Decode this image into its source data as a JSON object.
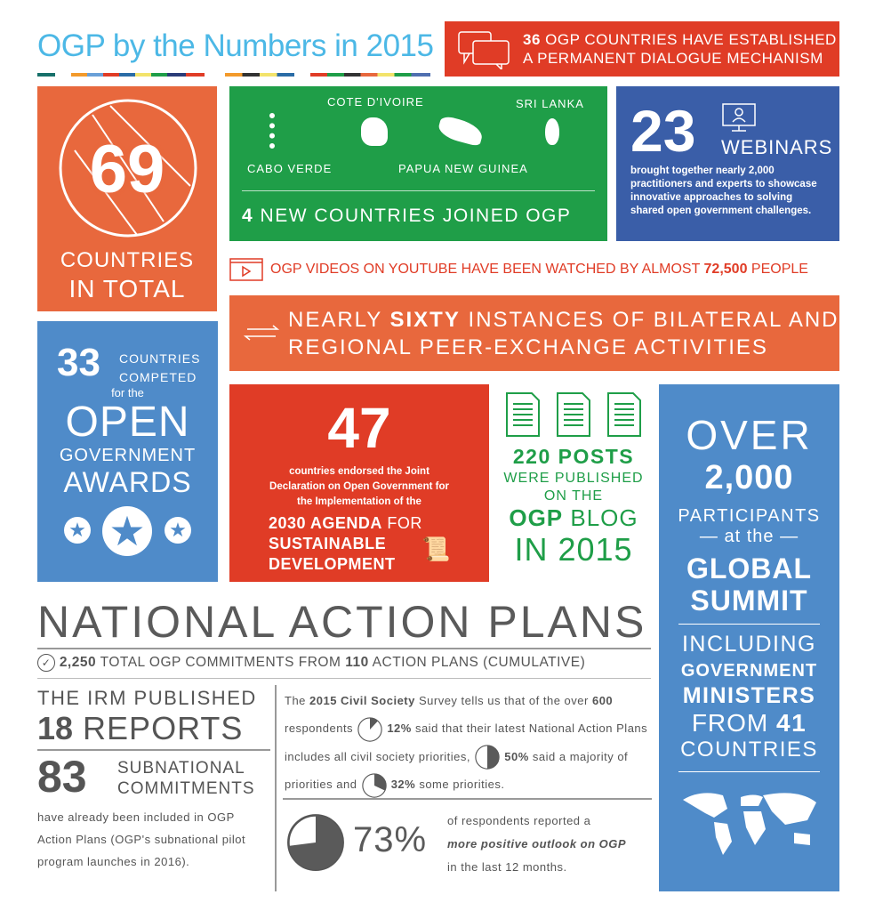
{
  "title": "OGP by the Numbers in 2015",
  "colors": {
    "orange": "#e8683d",
    "green": "#1f9e48",
    "navy": "#3a5ea8",
    "blue": "#4f8bc9",
    "red": "#e03c26",
    "cyan": "#4cb8e6",
    "gray": "#5a5a5a"
  },
  "dialogue": {
    "icon": "speech-bubbles-icon",
    "num": "36",
    "line1": " OGP COUNTRIES HAVE ESTABLISHED",
    "line2": "A PERMANENT DIALOGUE MECHANISM"
  },
  "countries": {
    "icon": "globe-icon",
    "num": "69",
    "line1": "COUNTRIES",
    "line2": "IN TOTAL"
  },
  "new_countries": {
    "names": [
      "CABO VERDE",
      "COTE D'IVOIRE",
      "PAPUA NEW GUINEA",
      "SRI LANKA"
    ],
    "num": "4",
    "text": " NEW COUNTRIES JOINED OGP"
  },
  "webinars": {
    "icon": "presenter-icon",
    "num": "23",
    "label": "WEBINARS",
    "text": "brought together nearly 2,000 practitioners and experts to showcase innovative approaches to solving shared open government challenges."
  },
  "youtube": {
    "icon": "video-play-icon",
    "text": "OGP VIDEOS ON YOUTUBE HAVE BEEN WATCHED BY ALMOST ",
    "num": "72,500",
    "tail": " PEOPLE"
  },
  "bilateral": {
    "icon": "exchange-arrows-icon",
    "pre": "NEARLY ",
    "bold": "SIXTY",
    "post": " INSTANCES OF BILATERAL AND",
    "line2": "REGIONAL PEER-EXCHANGE ACTIVITIES"
  },
  "awards": {
    "num": "33",
    "l1": "COUNTRIES",
    "l2": "COMPETED",
    "l3": "for the",
    "l4": "OPEN",
    "l5": "GOVERNMENT",
    "l6": "AWARDS",
    "icon": "star-medal-icon"
  },
  "agenda": {
    "num": "47",
    "text": "countries endorsed the Joint Declaration on Open Government for the Implementation of the",
    "b1": "2030 AGENDA",
    "t1": " FOR",
    "b2": "SUSTAINABLE",
    "b3": "DEVELOPMENT",
    "icon": "scroll-pen-icon"
  },
  "posts": {
    "icon": "document-icon",
    "num": "220 POSTS",
    "l1": "WERE PUBLISHED",
    "l2": "ON THE",
    "b": "OGP",
    "l3": " BLOG",
    "l4": "IN 2015"
  },
  "summit": {
    "l1": "OVER",
    "num": "2,000",
    "l2": "PARTICIPANTS",
    "l3": "at the",
    "b1": "GLOBAL",
    "b2": "SUMMIT",
    "l4": "INCLUDING",
    "b3": "GOVERNMENT",
    "b4": "MINISTERS",
    "l5": "FROM ",
    "num2": "41",
    "l6": "COUNTRIES",
    "icon": "world-map-icon"
  },
  "nap": {
    "heading": "NATIONAL ACTION PLANS",
    "icon": "check-circle-icon",
    "n1": "2,250",
    "t1": " TOTAL OGP COMMITMENTS FROM ",
    "n2": "110",
    "t2": " ACTION PLANS (CUMULATIVE)"
  },
  "irm": {
    "l1": "THE IRM PUBLISHED",
    "num": "18",
    "l2": " REPORTS",
    "num2": "83",
    "s1": "SUBNATIONAL",
    "s2": "COMMITMENTS",
    "text": "have already been included in OGP Action Plans (OGP's subnational pilot program launches in 2016)."
  },
  "survey": {
    "t0": "The ",
    "b0": "2015 Civil Society",
    "t1": " Survey tells us that of the over",
    "b1": "600",
    "t2": " respondents",
    "p1": 12,
    "b2": "12%",
    "t3": " said that their latest National Action Plans includes all civil society priorities,",
    "p2": 50,
    "b3": "50%",
    "t4": " said a majority of priorities and",
    "p3": 32,
    "b4": "32%",
    "t5": " some priorities."
  },
  "outlook": {
    "pct": 73,
    "label": "73%",
    "t1": "of respondents reported a",
    "i": "more positive outlook on OGP",
    "t2": "in the last 12 months."
  }
}
